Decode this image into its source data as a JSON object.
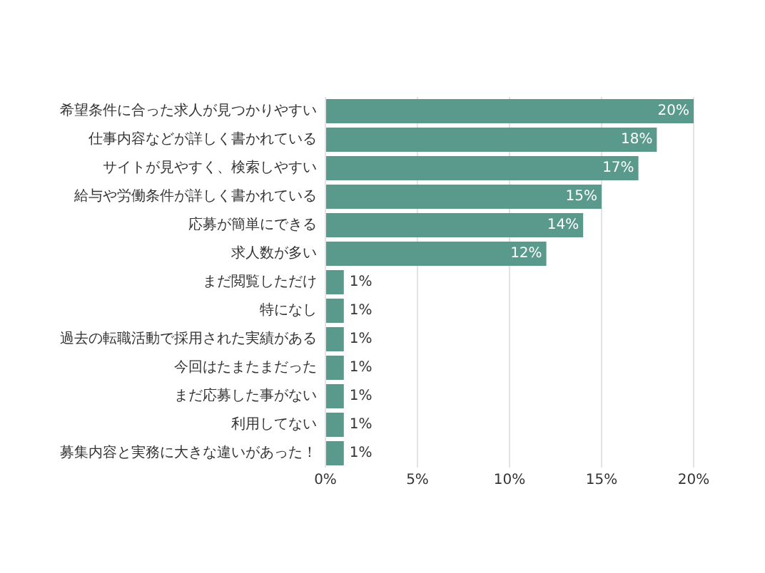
{
  "chart_data": {
    "type": "bar",
    "orientation": "horizontal",
    "categories": [
      "希望条件に合った求人が見つかりやすい",
      "仕事内容などが詳しく書かれている",
      "サイトが見やすく、検索しやすい",
      "給与や労働条件が詳しく書かれている",
      "応募が簡単にできる",
      "求人数が多い",
      "まだ閲覧しただけ",
      "特になし",
      "過去の転職活動で採用された実績がある",
      "今回はたまたまだった",
      "まだ応募した事がない",
      "利用してない",
      "募集内容と実務に大きな違いがあった！"
    ],
    "values": [
      20,
      18,
      17,
      15,
      14,
      12,
      1,
      1,
      1,
      1,
      1,
      1,
      1
    ],
    "value_labels": [
      "20%",
      "18%",
      "17%",
      "15%",
      "14%",
      "12%",
      "1%",
      "1%",
      "1%",
      "1%",
      "1%",
      "1%",
      "1%"
    ],
    "color": "#5a9a8c",
    "xlim": [
      0,
      20
    ],
    "xticks": [
      {
        "value": 0,
        "label": "0%"
      },
      {
        "value": 5,
        "label": "5%"
      },
      {
        "value": 10,
        "label": "10%"
      },
      {
        "value": 15,
        "label": "15%"
      },
      {
        "value": 20,
        "label": "20%"
      }
    ],
    "grid": "x"
  }
}
